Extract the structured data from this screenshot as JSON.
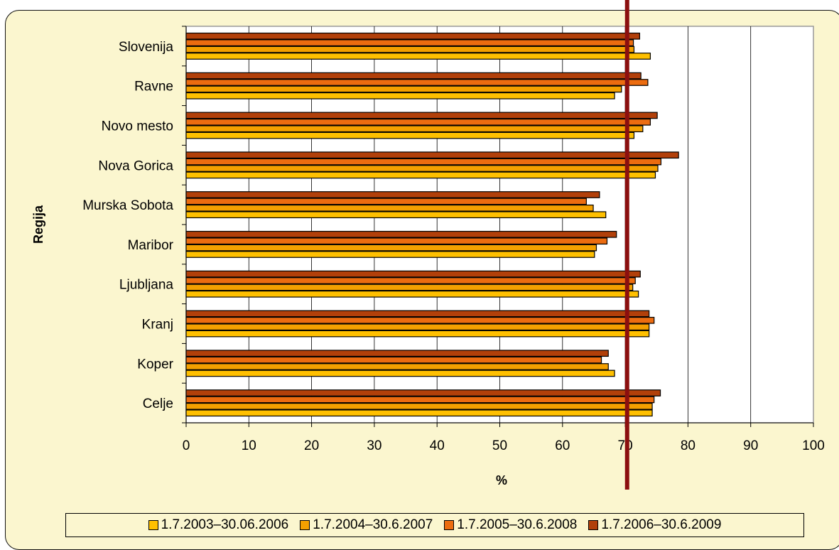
{
  "chart_data": {
    "type": "bar",
    "orientation": "horizontal",
    "ylabel": "Regija",
    "xlabel": "%",
    "xlim": [
      0,
      100
    ],
    "xticks": [
      "0",
      "10",
      "20",
      "30",
      "40",
      "50",
      "60",
      "70",
      "80",
      "90",
      "100"
    ],
    "grid": "vertical",
    "legend_position": "bottom",
    "categories": [
      "Slovenija",
      "Ravne",
      "Novo mesto",
      "Nova Gorica",
      "Murska Sobota",
      "Maribor",
      "Ljubljana",
      "Kranj",
      "Koper",
      "Celje"
    ],
    "series": [
      {
        "name": "1.7.2003–30.06.2006",
        "color": "#ffc000",
        "values": [
          74.0,
          68.3,
          71.4,
          74.8,
          66.9,
          65.1,
          72.1,
          73.8,
          68.3,
          74.3
        ]
      },
      {
        "name": "1.7.2004–30.6.2007",
        "color": "#f4a000",
        "values": [
          71.4,
          69.4,
          72.8,
          75.2,
          64.9,
          65.4,
          71.2,
          73.8,
          67.3,
          74.3
        ]
      },
      {
        "name": "1.7.2005–30.6.2008",
        "color": "#ec6c10",
        "values": [
          71.3,
          73.6,
          74.0,
          75.7,
          63.8,
          67.1,
          71.6,
          74.6,
          66.2,
          74.6
        ]
      },
      {
        "name": "1.7.2006–30.6.2009",
        "color": "#b2400a",
        "values": [
          72.3,
          72.5,
          75.1,
          78.5,
          65.9,
          68.6,
          72.4,
          73.8,
          67.3,
          75.6
        ]
      }
    ],
    "reference_line": {
      "value": 70.3,
      "color": "#8b0f0f"
    }
  }
}
